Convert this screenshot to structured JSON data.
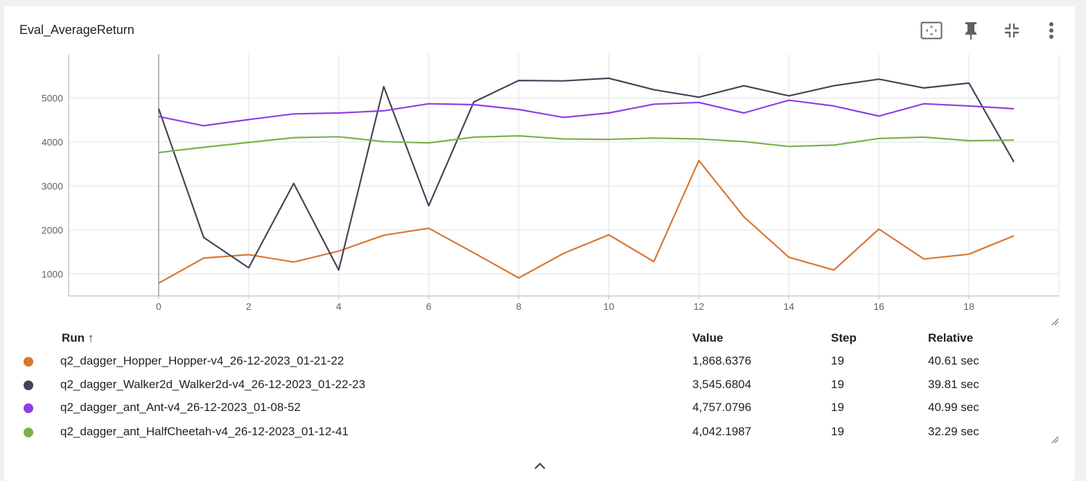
{
  "card": {
    "title": "Eval_AverageReturn",
    "toolbar": {
      "fullscreen_icon": "fit-to-screen-icon",
      "pin_icon": "pin-icon",
      "collapse_icon": "collapse-icon",
      "menu_icon": "more-vert-icon"
    }
  },
  "legend": {
    "headers": {
      "run": "Run ↑",
      "value": "Value",
      "step": "Step",
      "relative": "Relative"
    },
    "rows": [
      {
        "color": "#d9752f",
        "run": "q2_dagger_Hopper_Hopper-v4_26-12-2023_01-21-22",
        "value": "1,868.6376",
        "step": "19",
        "relative": "40.61 sec"
      },
      {
        "color": "#3d4658",
        "run": "q2_dagger_Walker2d_Walker2d-v4_26-12-2023_01-22-23",
        "value": "3,545.6804",
        "step": "19",
        "relative": "39.81 sec"
      },
      {
        "color": "#8e3ee3",
        "run": "q2_dagger_ant_Ant-v4_26-12-2023_01-08-52",
        "value": "4,757.0796",
        "step": "19",
        "relative": "40.99 sec"
      },
      {
        "color": "#7cb04b",
        "run": "q2_dagger_ant_HalfCheetah-v4_26-12-2023_01-12-41",
        "value": "4,042.1987",
        "step": "19",
        "relative": "32.29 sec"
      }
    ],
    "collapse_icon": "chevron-up-icon"
  },
  "chart_data": {
    "type": "line",
    "title": "Eval_AverageReturn",
    "xlabel": "",
    "ylabel": "",
    "x_ticks": [
      0,
      2,
      4,
      6,
      8,
      10,
      12,
      14,
      16,
      18
    ],
    "y_ticks": [
      1000,
      2000,
      3000,
      4000,
      5000
    ],
    "xlim": [
      -2,
      20
    ],
    "ylim": [
      500,
      6000
    ],
    "grid": true,
    "x": [
      0,
      1,
      2,
      3,
      4,
      5,
      6,
      7,
      8,
      9,
      10,
      11,
      12,
      13,
      14,
      15,
      16,
      17,
      18,
      19
    ],
    "series": [
      {
        "name": "q2_dagger_Hopper_Hopper-v4_26-12-2023_01-21-22",
        "color": "#d9752f",
        "values": [
          790,
          1360,
          1440,
          1270,
          1520,
          1880,
          2040,
          1480,
          910,
          1470,
          1890,
          1280,
          3580,
          2300,
          1380,
          1090,
          2020,
          1340,
          1450,
          1868.64
        ]
      },
      {
        "name": "q2_dagger_Walker2d_Walker2d-v4_26-12-2023_01-22-23",
        "color": "#3d4658",
        "values": [
          4760,
          1830,
          1140,
          3060,
          1090,
          5260,
          2550,
          4910,
          5400,
          5390,
          5450,
          5190,
          5020,
          5280,
          5050,
          5280,
          5430,
          5230,
          5340,
          3545.68
        ]
      },
      {
        "name": "q2_dagger_ant_Ant-v4_26-12-2023_01-08-52",
        "color": "#8e3ee3",
        "values": [
          4580,
          4370,
          4510,
          4640,
          4660,
          4710,
          4870,
          4850,
          4740,
          4560,
          4660,
          4860,
          4900,
          4660,
          4950,
          4820,
          4590,
          4870,
          4820,
          4757.08
        ]
      },
      {
        "name": "q2_dagger_ant_HalfCheetah-v4_26-12-2023_01-12-41",
        "color": "#7cb04b",
        "values": [
          3760,
          3880,
          3990,
          4100,
          4120,
          4010,
          3980,
          4110,
          4140,
          4070,
          4060,
          4090,
          4070,
          4010,
          3900,
          3930,
          4080,
          4110,
          4030,
          4042.2
        ]
      }
    ]
  }
}
